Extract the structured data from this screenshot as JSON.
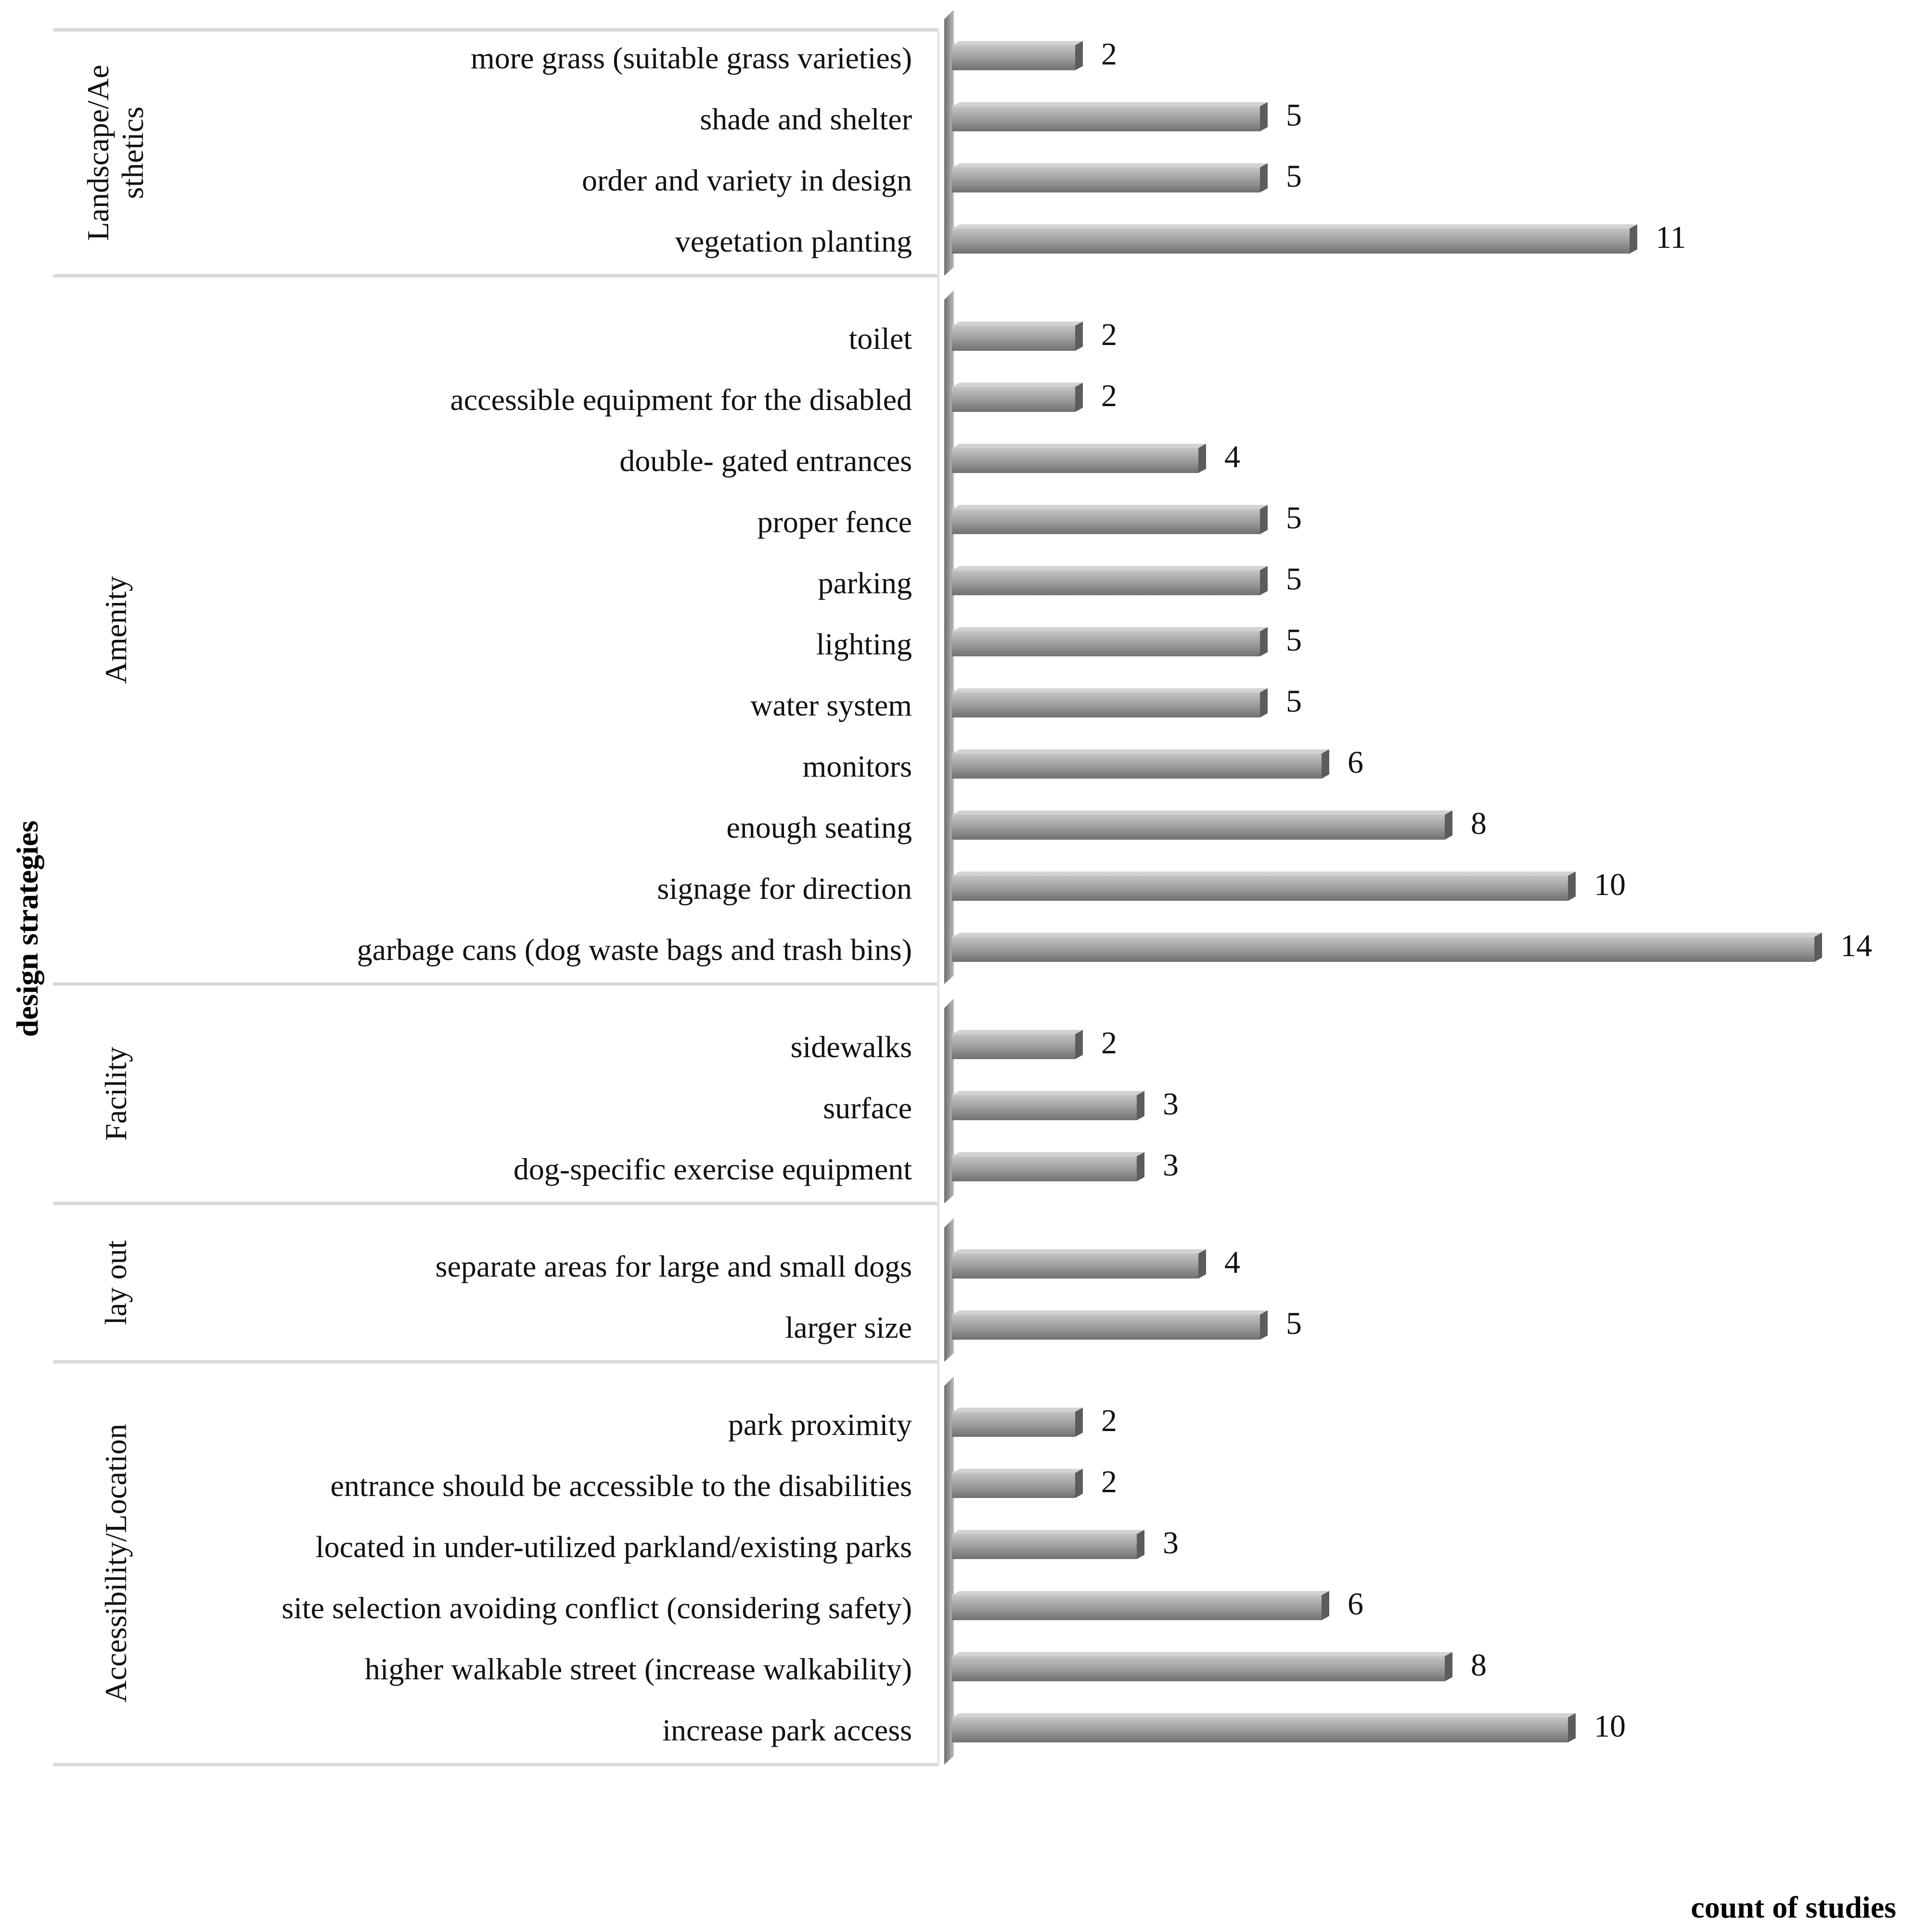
{
  "chart_data": {
    "type": "bar",
    "orientation": "horizontal",
    "xlabel": "count of studies",
    "ylabel": "design strategies",
    "xlim": [
      0,
      14
    ],
    "grid": false,
    "groups": [
      {
        "name": "Landscape/Aesthetics",
        "label_lines": [
          "Landscape/Ae",
          "sthetics"
        ],
        "items": [
          {
            "label": "more grass (suitable grass varieties)",
            "value": 2
          },
          {
            "label": "shade and shelter",
            "value": 5
          },
          {
            "label": "order and variety in design",
            "value": 5
          },
          {
            "label": "vegetation planting",
            "value": 11
          }
        ]
      },
      {
        "name": "Amenity",
        "label_lines": [
          "Amenity"
        ],
        "items": [
          {
            "label": "toilet",
            "value": 2
          },
          {
            "label": "accessible equipment  for the disabled",
            "value": 2
          },
          {
            "label": "double- gated entrances",
            "value": 4
          },
          {
            "label": "proper fence",
            "value": 5
          },
          {
            "label": "parking",
            "value": 5
          },
          {
            "label": "lighting",
            "value": 5
          },
          {
            "label": "water system",
            "value": 5
          },
          {
            "label": "monitors",
            "value": 6
          },
          {
            "label": "enough seating",
            "value": 8
          },
          {
            "label": "signage for direction",
            "value": 10
          },
          {
            "label": "garbage cans (dog waste bags and trash bins)",
            "value": 14
          }
        ]
      },
      {
        "name": "Facility",
        "label_lines": [
          "Facility"
        ],
        "items": [
          {
            "label": "sidewalks",
            "value": 2
          },
          {
            "label": "surface",
            "value": 3
          },
          {
            "label": "dog-specific exercise  equipment",
            "value": 3
          }
        ]
      },
      {
        "name": "lay out",
        "label_lines": [
          "lay out"
        ],
        "items": [
          {
            "label": "separate areas for large and small dogs",
            "value": 4
          },
          {
            "label": "larger size",
            "value": 5
          }
        ]
      },
      {
        "name": "Accessibility/Location",
        "label_lines": [
          "Accessibility/Location"
        ],
        "items": [
          {
            "label": "park proximity",
            "value": 2
          },
          {
            "label": "entrance should be accessible to the disabilities",
            "value": 2
          },
          {
            "label": "located in under-utilized parkland/existing parks",
            "value": 3
          },
          {
            "label": "site selection avoiding conflict (considering safety)",
            "value": 6
          },
          {
            "label": "higher walkable street (increase walkability)",
            "value": 8
          },
          {
            "label": "increase park access",
            "value": 10
          }
        ]
      }
    ],
    "colors": {
      "bar_fill_top": "#b8b8b8",
      "bar_fill_mid": "#9a9a9a",
      "bar_fill_bottom": "#6e6e6e",
      "bar_end": "#5a5a5a",
      "wall": "#8c8c8c",
      "divider": "#d9d9d9"
    }
  }
}
